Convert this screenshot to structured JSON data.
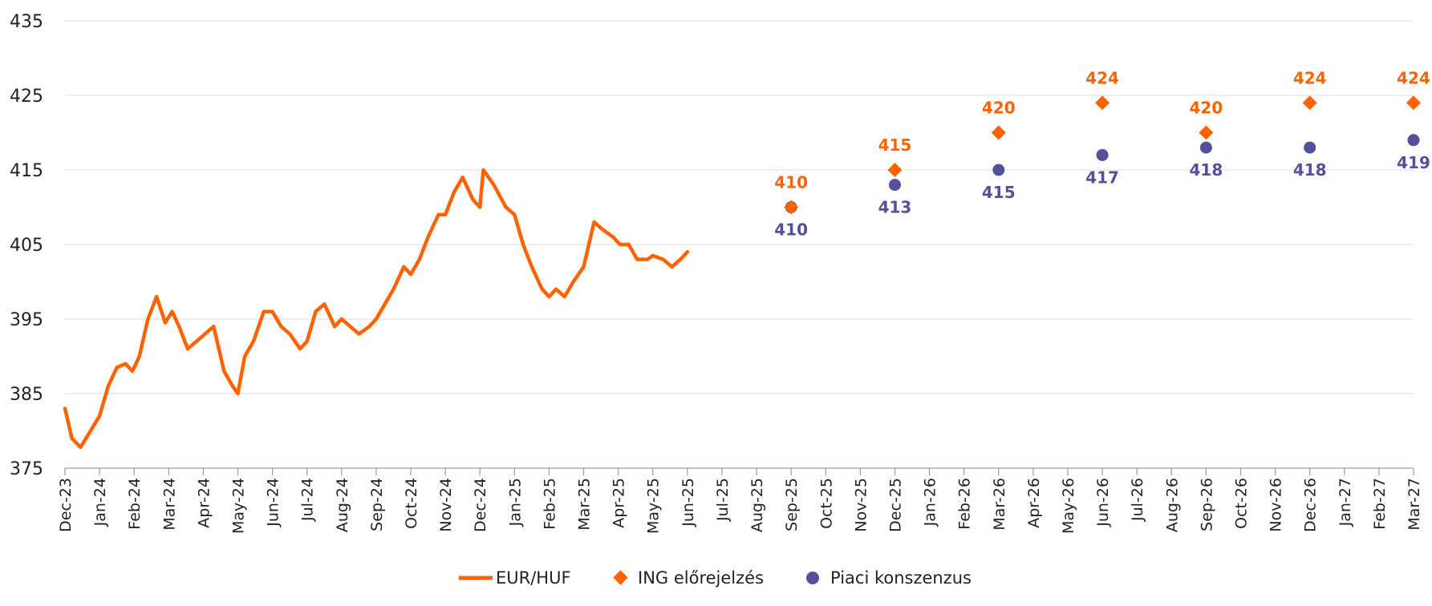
{
  "chart_data": {
    "type": "line",
    "ylim": [
      375,
      435
    ],
    "yticks": [
      "375",
      "385",
      "395",
      "405",
      "415",
      "425",
      "435"
    ],
    "grid": "horizontal",
    "legend_position": "bottom",
    "x_categories": [
      "Dec-23",
      "Jan-24",
      "Feb-24",
      "Mar-24",
      "Apr-24",
      "May-24",
      "Jun-24",
      "Jul-24",
      "Aug-24",
      "Sep-24",
      "Oct-24",
      "Nov-24",
      "Dec-24",
      "Jan-25",
      "Feb-25",
      "Mar-25",
      "Apr-25",
      "May-25",
      "Jun-25",
      "Jul-25",
      "Aug-25",
      "Sep-25",
      "Oct-25",
      "Nov-25",
      "Dec-25",
      "Jan-26",
      "Feb-26",
      "Mar-26",
      "Apr-26",
      "May-26",
      "Jun-26",
      "Jul-26",
      "Aug-26",
      "Sep-26",
      "Oct-26",
      "Nov-26",
      "Dec-26",
      "Jan-27",
      "Feb-27",
      "Mar-27"
    ],
    "series": [
      {
        "name": "EUR/HUF",
        "kind": "line",
        "color": "#ff6200",
        "x": [
          "Dec-23",
          "Dec-23",
          "Dec-23",
          "Jan-24",
          "Jan-24",
          "Jan-24",
          "Jan-24",
          "Jan-24",
          "Feb-24",
          "Feb-24",
          "Feb-24",
          "Feb-24",
          "Mar-24",
          "Mar-24",
          "Mar-24",
          "Mar-24",
          "Apr-24",
          "Apr-24",
          "Apr-24",
          "Apr-24",
          "May-24",
          "May-24",
          "May-24",
          "May-24",
          "Jun-24",
          "Jun-24",
          "Jun-24",
          "Jun-24",
          "Jul-24",
          "Jul-24",
          "Jul-24",
          "Jul-24",
          "Aug-24",
          "Aug-24",
          "Aug-24",
          "Aug-24",
          "Sep-24",
          "Sep-24",
          "Sep-24",
          "Sep-24",
          "Oct-24",
          "Oct-24",
          "Oct-24",
          "Oct-24",
          "Nov-24",
          "Nov-24",
          "Nov-24",
          "Nov-24",
          "Dec-24",
          "Dec-24",
          "Dec-24",
          "Dec-24",
          "Jan-25",
          "Jan-25",
          "Jan-25",
          "Jan-25",
          "Feb-25",
          "Feb-25",
          "Feb-25",
          "Feb-25",
          "Mar-25",
          "Mar-25",
          "Mar-25",
          "Mar-25",
          "Apr-25",
          "Apr-25",
          "Apr-25",
          "Apr-25",
          "May-25",
          "May-25",
          "May-25",
          "May-25",
          "Jun-25"
        ],
        "x_offset": [
          0,
          0.2,
          0.45,
          0,
          0.25,
          0.5,
          0.75,
          0.95,
          0.15,
          0.4,
          0.65,
          0.9,
          0.1,
          0.3,
          0.55,
          0.8,
          0.05,
          0.3,
          0.6,
          0.85,
          0,
          0.2,
          0.45,
          0.75,
          0,
          0.25,
          0.5,
          0.8,
          0,
          0.25,
          0.5,
          0.8,
          0,
          0.25,
          0.5,
          0.8,
          0,
          0.25,
          0.5,
          0.8,
          0,
          0.25,
          0.5,
          0.8,
          0,
          0.25,
          0.5,
          0.8,
          0,
          0.1,
          0.4,
          0.75,
          0,
          0.25,
          0.5,
          0.8,
          0,
          0.2,
          0.45,
          0.7,
          0,
          0.3,
          0.55,
          0.85,
          0.05,
          0.3,
          0.55,
          0.85,
          0,
          0.3,
          0.55,
          0.8,
          0
        ],
        "y": [
          383,
          379,
          377.8,
          382,
          386,
          388.5,
          389,
          388,
          390,
          395,
          398,
          394.5,
          396,
          394,
          391,
          392,
          393,
          394,
          388,
          386,
          385,
          390,
          392,
          396,
          396,
          394,
          393,
          391,
          392,
          396,
          397,
          394,
          395,
          394,
          393,
          394,
          395,
          397,
          399,
          402,
          401,
          403,
          406,
          409,
          409,
          412,
          414,
          411,
          410,
          415,
          413,
          410,
          409,
          405,
          402,
          399,
          398,
          399,
          398,
          400,
          402,
          408,
          407,
          406,
          405,
          405,
          403,
          403,
          403.5,
          403,
          402,
          403,
          404
        ]
      },
      {
        "name": "ING előrejelzés",
        "kind": "diamond",
        "color": "#ff6200",
        "x": [
          "Sep-25",
          "Dec-25",
          "Mar-26",
          "Jun-26",
          "Sep-26",
          "Dec-26",
          "Mar-27"
        ],
        "values": [
          410,
          415,
          420,
          424,
          420,
          424,
          424
        ],
        "labels": [
          "410",
          "415",
          "420",
          "424",
          "420",
          "424",
          "424"
        ]
      },
      {
        "name": "Piaci konszenzus",
        "kind": "circle",
        "color": "#525199",
        "x": [
          "Sep-25",
          "Dec-25",
          "Mar-26",
          "Jun-26",
          "Sep-26",
          "Dec-26",
          "Mar-27"
        ],
        "values": [
          410,
          413,
          415,
          417,
          418,
          418,
          419
        ],
        "labels": [
          "410",
          "413",
          "415",
          "417",
          "418",
          "418",
          "419"
        ]
      }
    ]
  }
}
